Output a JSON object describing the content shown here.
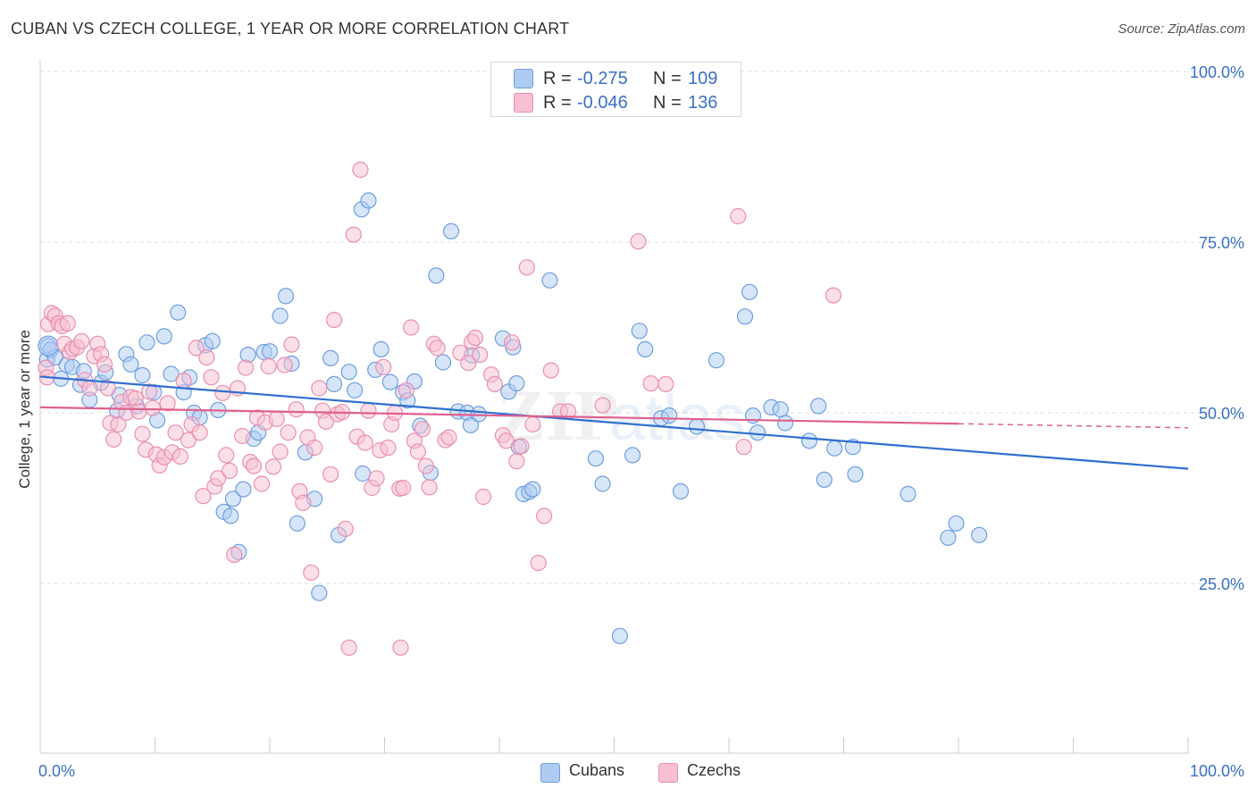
{
  "header": {
    "title": "CUBAN VS CZECH COLLEGE, 1 YEAR OR MORE CORRELATION CHART",
    "source": "Source: ZipAtlas.com"
  },
  "legend": {
    "rows": [
      {
        "r_label": "R =",
        "r_value": "-0.275",
        "n_label": "N =",
        "n_value": "109"
      },
      {
        "r_label": "R =",
        "r_value": "-0.046",
        "n_label": "N =",
        "n_value": "136"
      }
    ]
  },
  "bottom_legend": {
    "items": [
      {
        "label": "Cubans"
      },
      {
        "label": "Czechs"
      }
    ]
  },
  "colors": {
    "cubans_fill": "#aecbf2",
    "cubans_stroke": "#6f9fe0",
    "cubans_line": "#2f6fd0",
    "czechs_fill": "#f7bfd1",
    "czechs_stroke": "#ea8fae",
    "czechs_line": "#e0608f",
    "axis_text": "#3a70c7",
    "grid": "#dddddd"
  },
  "chart_data": {
    "type": "scatter",
    "title": "CUBAN VS CZECH COLLEGE, 1 YEAR OR MORE CORRELATION CHART",
    "xlabel": "",
    "ylabel": "College, 1 year or more",
    "xlim": [
      0,
      100
    ],
    "ylim": [
      0,
      105
    ],
    "x_tick_labels": [
      "0.0%",
      "100.0%"
    ],
    "y_ticks": [
      25,
      50,
      75,
      100
    ],
    "y_tick_labels": [
      "25.0%",
      "50.0%",
      "75.0%",
      "100.0%"
    ],
    "grid": true,
    "legend_position": "top-center",
    "watermark": "ZIPatlas",
    "series": [
      {
        "name": "Cubans",
        "r": -0.275,
        "n": 109,
        "trend": {
          "x": [
            0,
            100
          ],
          "y": [
            55.3,
            41.8
          ]
        },
        "points": [
          [
            0.7,
            59.8
          ],
          [
            0.6,
            57.8
          ],
          [
            0.9,
            59.2
          ],
          [
            1.3,
            58.1
          ],
          [
            1.8,
            55.0
          ],
          [
            2.3,
            57.0
          ],
          [
            2.8,
            56.7
          ],
          [
            3.5,
            54.1
          ],
          [
            3.8,
            56.1
          ],
          [
            4.3,
            51.9
          ],
          [
            5.3,
            54.4
          ],
          [
            5.7,
            55.9
          ],
          [
            6.7,
            50.3
          ],
          [
            6.9,
            52.6
          ],
          [
            7.5,
            58.6
          ],
          [
            7.9,
            57.1
          ],
          [
            8.4,
            51.0
          ],
          [
            8.9,
            55.5
          ],
          [
            9.3,
            60.3
          ],
          [
            9.9,
            53.0
          ],
          [
            10.2,
            48.9
          ],
          [
            10.8,
            61.2
          ],
          [
            11.4,
            55.7
          ],
          [
            12.0,
            64.7
          ],
          [
            12.5,
            53.0
          ],
          [
            13.0,
            55.2
          ],
          [
            13.4,
            50.0
          ],
          [
            13.9,
            49.3
          ],
          [
            14.4,
            59.9
          ],
          [
            15.0,
            60.5
          ],
          [
            15.5,
            50.4
          ],
          [
            16.0,
            35.5
          ],
          [
            16.6,
            34.9
          ],
          [
            16.8,
            37.4
          ],
          [
            17.3,
            29.6
          ],
          [
            17.7,
            38.8
          ],
          [
            18.1,
            58.5
          ],
          [
            18.6,
            46.2
          ],
          [
            19.0,
            47.1
          ],
          [
            19.5,
            58.9
          ],
          [
            20.0,
            59.0
          ],
          [
            20.9,
            64.2
          ],
          [
            21.4,
            67.1
          ],
          [
            21.9,
            57.2
          ],
          [
            22.4,
            33.8
          ],
          [
            23.1,
            44.2
          ],
          [
            23.9,
            37.4
          ],
          [
            24.3,
            23.6
          ],
          [
            25.3,
            58.0
          ],
          [
            25.6,
            54.2
          ],
          [
            26.0,
            32.1
          ],
          [
            26.9,
            56.0
          ],
          [
            27.4,
            53.3
          ],
          [
            28.0,
            79.8
          ],
          [
            28.1,
            41.1
          ],
          [
            28.6,
            81.1
          ],
          [
            29.2,
            56.3
          ],
          [
            29.7,
            59.3
          ],
          [
            30.5,
            54.5
          ],
          [
            31.6,
            53.0
          ],
          [
            32.0,
            51.8
          ],
          [
            32.6,
            54.6
          ],
          [
            33.1,
            48.1
          ],
          [
            34.0,
            41.2
          ],
          [
            34.5,
            70.1
          ],
          [
            35.1,
            57.4
          ],
          [
            35.8,
            76.6
          ],
          [
            36.4,
            50.2
          ],
          [
            37.2,
            50.0
          ],
          [
            37.5,
            48.2
          ],
          [
            38.2,
            49.8
          ],
          [
            40.3,
            60.9
          ],
          [
            40.8,
            53.1
          ],
          [
            41.2,
            59.6
          ],
          [
            41.5,
            54.3
          ],
          [
            41.7,
            45.0
          ],
          [
            42.1,
            38.1
          ],
          [
            42.6,
            38.4
          ],
          [
            42.9,
            38.8
          ],
          [
            44.4,
            69.4
          ],
          [
            48.4,
            43.3
          ],
          [
            49.0,
            39.6
          ],
          [
            50.5,
            17.3
          ],
          [
            51.6,
            43.8
          ],
          [
            52.2,
            62.0
          ],
          [
            52.7,
            59.3
          ],
          [
            54.1,
            49.2
          ],
          [
            54.8,
            49.6
          ],
          [
            55.8,
            38.5
          ],
          [
            57.2,
            48.0
          ],
          [
            58.9,
            57.7
          ],
          [
            61.4,
            64.1
          ],
          [
            61.8,
            67.7
          ],
          [
            62.1,
            49.6
          ],
          [
            62.5,
            47.1
          ],
          [
            63.7,
            50.8
          ],
          [
            64.5,
            50.5
          ],
          [
            64.9,
            48.5
          ],
          [
            67.0,
            45.9
          ],
          [
            67.8,
            51.0
          ],
          [
            68.3,
            40.2
          ],
          [
            69.2,
            44.8
          ],
          [
            70.8,
            45.0
          ],
          [
            71.0,
            41.0
          ],
          [
            75.6,
            38.1
          ],
          [
            79.1,
            31.7
          ],
          [
            79.8,
            33.8
          ],
          [
            81.8,
            32.1
          ],
          [
            37.6,
            58.4
          ]
        ]
      },
      {
        "name": "Czechs",
        "r": -0.046,
        "n": 136,
        "trend": {
          "x": [
            0,
            80
          ],
          "y": [
            50.8,
            48.4
          ]
        },
        "trend_dashed_to": {
          "x": 100,
          "y": 47.8
        },
        "points": [
          [
            0.5,
            56.6
          ],
          [
            0.6,
            55.2
          ],
          [
            0.7,
            63.0
          ],
          [
            1.0,
            64.6
          ],
          [
            1.3,
            64.2
          ],
          [
            1.6,
            63.1
          ],
          [
            1.9,
            62.7
          ],
          [
            2.1,
            60.1
          ],
          [
            2.4,
            63.1
          ],
          [
            2.6,
            58.9
          ],
          [
            2.8,
            59.4
          ],
          [
            3.2,
            59.6
          ],
          [
            3.6,
            60.5
          ],
          [
            3.9,
            54.8
          ],
          [
            4.3,
            53.6
          ],
          [
            4.7,
            58.3
          ],
          [
            5.0,
            60.1
          ],
          [
            5.3,
            58.6
          ],
          [
            5.6,
            57.1
          ],
          [
            5.9,
            53.6
          ],
          [
            6.1,
            48.5
          ],
          [
            6.4,
            46.1
          ],
          [
            6.8,
            48.3
          ],
          [
            7.1,
            51.6
          ],
          [
            7.5,
            50.0
          ],
          [
            7.9,
            52.3
          ],
          [
            8.3,
            52.1
          ],
          [
            8.6,
            50.2
          ],
          [
            8.9,
            46.9
          ],
          [
            9.2,
            44.6
          ],
          [
            9.5,
            53.1
          ],
          [
            9.8,
            50.7
          ],
          [
            10.1,
            43.9
          ],
          [
            10.4,
            42.3
          ],
          [
            10.8,
            43.5
          ],
          [
            11.1,
            51.4
          ],
          [
            11.5,
            44.2
          ],
          [
            11.8,
            47.1
          ],
          [
            12.2,
            43.6
          ],
          [
            12.5,
            54.7
          ],
          [
            12.9,
            46.0
          ],
          [
            13.2,
            48.3
          ],
          [
            13.6,
            59.5
          ],
          [
            13.9,
            47.1
          ],
          [
            14.2,
            37.8
          ],
          [
            14.5,
            58.1
          ],
          [
            14.9,
            55.2
          ],
          [
            15.2,
            39.2
          ],
          [
            15.5,
            40.4
          ],
          [
            15.9,
            52.9
          ],
          [
            16.2,
            43.8
          ],
          [
            16.5,
            41.5
          ],
          [
            16.9,
            29.2
          ],
          [
            17.2,
            53.6
          ],
          [
            17.6,
            46.6
          ],
          [
            17.9,
            56.6
          ],
          [
            18.3,
            42.8
          ],
          [
            18.6,
            42.2
          ],
          [
            18.9,
            49.3
          ],
          [
            19.3,
            39.6
          ],
          [
            19.6,
            48.6
          ],
          [
            19.9,
            56.8
          ],
          [
            20.3,
            42.1
          ],
          [
            20.6,
            49.1
          ],
          [
            20.9,
            44.3
          ],
          [
            21.3,
            57.0
          ],
          [
            21.6,
            47.1
          ],
          [
            21.9,
            60.0
          ],
          [
            22.3,
            50.5
          ],
          [
            22.6,
            38.5
          ],
          [
            22.9,
            36.8
          ],
          [
            23.3,
            46.4
          ],
          [
            23.6,
            26.6
          ],
          [
            23.9,
            44.9
          ],
          [
            24.3,
            53.6
          ],
          [
            24.6,
            50.3
          ],
          [
            24.9,
            48.7
          ],
          [
            25.3,
            41.0
          ],
          [
            25.6,
            63.6
          ],
          [
            25.9,
            49.8
          ],
          [
            26.3,
            50.1
          ],
          [
            26.6,
            33.0
          ],
          [
            26.9,
            15.6
          ],
          [
            27.3,
            76.1
          ],
          [
            27.6,
            46.5
          ],
          [
            27.9,
            85.6
          ],
          [
            28.3,
            45.6
          ],
          [
            28.6,
            50.3
          ],
          [
            28.9,
            39.0
          ],
          [
            29.3,
            40.4
          ],
          [
            29.6,
            44.5
          ],
          [
            29.9,
            56.7
          ],
          [
            30.3,
            44.9
          ],
          [
            30.6,
            48.3
          ],
          [
            30.9,
            50.0
          ],
          [
            31.3,
            38.9
          ],
          [
            31.6,
            39.0
          ],
          [
            31.9,
            53.3
          ],
          [
            32.3,
            62.5
          ],
          [
            32.6,
            45.9
          ],
          [
            32.9,
            44.3
          ],
          [
            33.3,
            47.6
          ],
          [
            33.6,
            42.2
          ],
          [
            33.9,
            39.1
          ],
          [
            34.3,
            60.1
          ],
          [
            34.6,
            59.5
          ],
          [
            35.3,
            46.0
          ],
          [
            35.6,
            46.4
          ],
          [
            36.6,
            58.8
          ],
          [
            37.3,
            57.3
          ],
          [
            37.6,
            60.4
          ],
          [
            37.9,
            61.0
          ],
          [
            38.3,
            58.5
          ],
          [
            38.6,
            37.7
          ],
          [
            39.3,
            55.6
          ],
          [
            39.6,
            54.2
          ],
          [
            40.3,
            46.7
          ],
          [
            40.6,
            45.9
          ],
          [
            41.1,
            60.3
          ],
          [
            41.5,
            42.9
          ],
          [
            41.9,
            45.1
          ],
          [
            42.4,
            71.3
          ],
          [
            42.9,
            48.3
          ],
          [
            43.4,
            28.0
          ],
          [
            43.9,
            34.9
          ],
          [
            44.5,
            56.2
          ],
          [
            45.3,
            50.2
          ],
          [
            46.0,
            50.2
          ],
          [
            49.0,
            51.1
          ],
          [
            52.1,
            75.1
          ],
          [
            53.2,
            54.3
          ],
          [
            54.5,
            54.2
          ],
          [
            60.8,
            78.8
          ],
          [
            61.3,
            45.0
          ],
          [
            69.1,
            67.2
          ],
          [
            31.4,
            15.6
          ]
        ]
      }
    ]
  }
}
